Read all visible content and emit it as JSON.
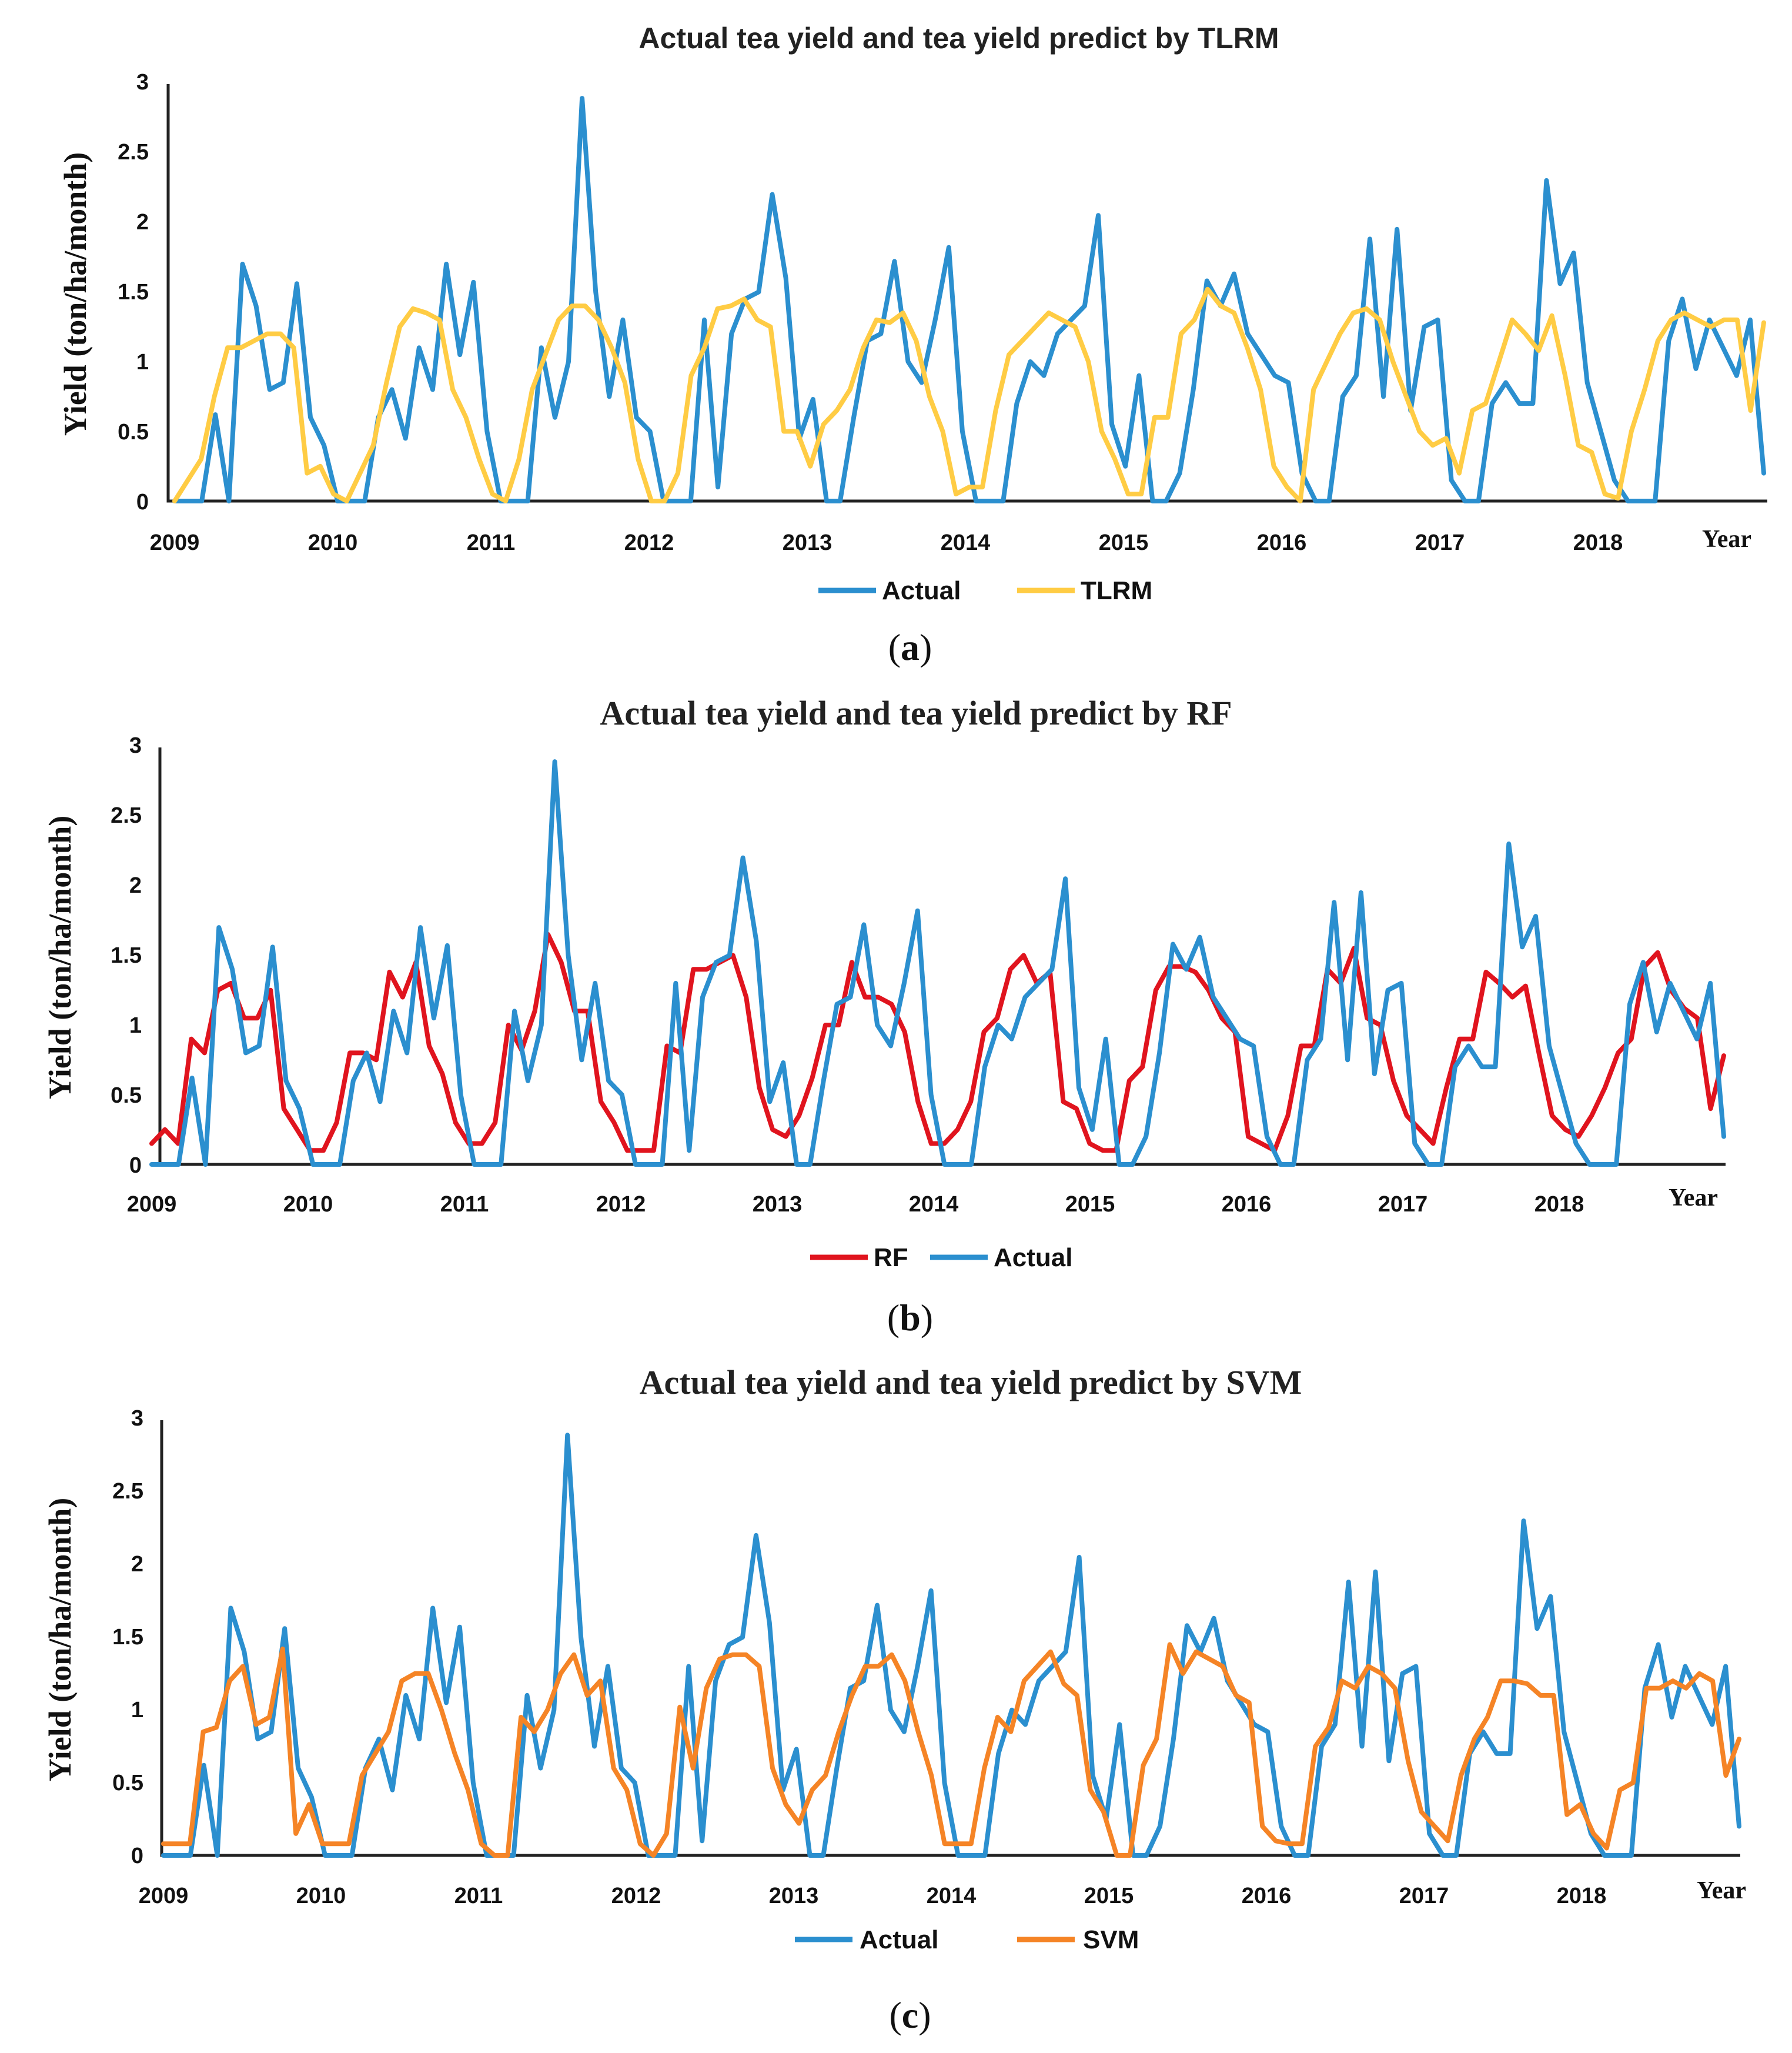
{
  "colors": {
    "actual": "#2b8fcf",
    "tlrm": "#ffcc44",
    "rf": "#e0141e",
    "svm": "#f58426"
  },
  "chart_data": [
    {
      "type": "line",
      "caption": "a",
      "title": "Actual tea yield and tea yield predict by TLRM",
      "ylabel": "Yield (ton/ha/month)",
      "xunit": "Year",
      "ylim": [
        0,
        3
      ],
      "yticks": [
        "0",
        "0.5",
        "1",
        "1.5",
        "2",
        "2.5",
        "3"
      ],
      "xticks": [
        "2009",
        "2010",
        "2011",
        "2012",
        "2013",
        "2014",
        "2015",
        "2016",
        "2017",
        "2018"
      ],
      "legend_order": [
        "Actual",
        "TLRM"
      ],
      "series": [
        {
          "name": "Actual",
          "color_key": "actual",
          "values": [
            0,
            0,
            0,
            0.62,
            0,
            1.7,
            1.4,
            0.8,
            0.85,
            1.56,
            0.6,
            0.4,
            0,
            0,
            0,
            0.6,
            0.8,
            0.45,
            1.1,
            0.8,
            1.7,
            1.05,
            1.57,
            0.5,
            0,
            0,
            0,
            1.1,
            0.6,
            1.0,
            2.89,
            1.5,
            0.75,
            1.3,
            0.6,
            0.5,
            0,
            0,
            0,
            1.3,
            0.1,
            1.2,
            1.45,
            1.5,
            2.2,
            1.6,
            0.45,
            0.73,
            0,
            0,
            0.6,
            1.15,
            1.2,
            1.72,
            1.0,
            0.85,
            1.3,
            1.82,
            0.5,
            0,
            0,
            0,
            0.7,
            1.0,
            0.9,
            1.2,
            1.3,
            1.4,
            2.05,
            0.55,
            0.25,
            0.9,
            0,
            0,
            0.2,
            0.8,
            1.58,
            1.4,
            1.63,
            1.2,
            1.05,
            0.9,
            0.85,
            0.2,
            0,
            0,
            0.75,
            0.9,
            1.88,
            0.75,
            1.95,
            0.65,
            1.25,
            1.3,
            0.15,
            0,
            0,
            0.7,
            0.85,
            0.7,
            0.7,
            2.3,
            1.56,
            1.78,
            0.85,
            0.5,
            0.15,
            0,
            0,
            0,
            1.15,
            1.45,
            0.95,
            1.3,
            1.1,
            0.9,
            1.3,
            0.2
          ]
        },
        {
          "name": "TLRM",
          "color_key": "tlrm",
          "values": [
            0,
            0.15,
            0.3,
            0.75,
            1.1,
            1.1,
            1.15,
            1.2,
            1.2,
            1.1,
            0.2,
            0.25,
            0.05,
            0,
            0.2,
            0.4,
            0.85,
            1.25,
            1.38,
            1.35,
            1.3,
            0.8,
            0.6,
            0.3,
            0.05,
            0,
            0.3,
            0.8,
            1.05,
            1.3,
            1.4,
            1.4,
            1.3,
            1.1,
            0.85,
            0.3,
            0,
            0,
            0.2,
            0.9,
            1.1,
            1.38,
            1.4,
            1.45,
            1.3,
            1.25,
            0.5,
            0.5,
            0.25,
            0.55,
            0.65,
            0.8,
            1.1,
            1.3,
            1.28,
            1.35,
            1.15,
            0.75,
            0.5,
            0.05,
            0.1,
            0.1,
            0.65,
            1.05,
            1.15,
            1.25,
            1.35,
            1.3,
            1.25,
            1.0,
            0.5,
            0.3,
            0.05,
            0.05,
            0.6,
            0.6,
            1.2,
            1.3,
            1.52,
            1.4,
            1.35,
            1.1,
            0.8,
            0.25,
            0.1,
            0,
            0.8,
            1.0,
            1.2,
            1.35,
            1.38,
            1.3,
            1.0,
            0.75,
            0.5,
            0.4,
            0.45,
            0.2,
            0.65,
            0.7,
            1.0,
            1.3,
            1.2,
            1.08,
            1.33,
            0.9,
            0.4,
            0.35,
            0.05,
            0.02,
            0.5,
            0.8,
            1.15,
            1.3,
            1.35,
            1.3,
            1.25,
            1.3,
            1.3,
            0.65,
            1.28
          ]
        }
      ]
    },
    {
      "type": "line",
      "caption": "b",
      "title": "Actual tea yield and tea yield predict by RF",
      "ylabel": "Yield (ton/ha/month)",
      "xunit": "Year",
      "ylim": [
        0,
        3
      ],
      "yticks": [
        "0",
        "0.5",
        "1",
        "1.5",
        "2",
        "2.5",
        "3"
      ],
      "xticks": [
        "2009",
        "2010",
        "2011",
        "2012",
        "2013",
        "2014",
        "2015",
        "2016",
        "2017",
        "2018"
      ],
      "legend_order": [
        "RF",
        "Actual"
      ],
      "series": [
        {
          "name": "Actual",
          "color_key": "actual",
          "values": [
            0,
            0,
            0,
            0.62,
            0,
            1.7,
            1.4,
            0.8,
            0.85,
            1.56,
            0.6,
            0.4,
            0,
            0,
            0,
            0.6,
            0.8,
            0.45,
            1.1,
            0.8,
            1.7,
            1.05,
            1.57,
            0.5,
            0,
            0,
            0,
            1.1,
            0.6,
            1.0,
            2.89,
            1.5,
            0.75,
            1.3,
            0.6,
            0.5,
            0,
            0,
            0,
            1.3,
            0.1,
            1.2,
            1.45,
            1.5,
            2.2,
            1.6,
            0.45,
            0.73,
            0,
            0,
            0.6,
            1.15,
            1.2,
            1.72,
            1.0,
            0.85,
            1.3,
            1.82,
            0.5,
            0,
            0,
            0,
            0.7,
            1.0,
            0.9,
            1.2,
            1.3,
            1.4,
            2.05,
            0.55,
            0.25,
            0.9,
            0,
            0,
            0.2,
            0.8,
            1.58,
            1.4,
            1.63,
            1.2,
            1.05,
            0.9,
            0.85,
            0.2,
            0,
            0,
            0.75,
            0.9,
            1.88,
            0.75,
            1.95,
            0.65,
            1.25,
            1.3,
            0.15,
            0,
            0,
            0.7,
            0.85,
            0.7,
            0.7,
            2.3,
            1.56,
            1.78,
            0.85,
            0.5,
            0.15,
            0,
            0,
            0,
            1.15,
            1.45,
            0.95,
            1.3,
            1.1,
            0.9,
            1.3,
            0.2
          ]
        },
        {
          "name": "RF",
          "color_key": "rf",
          "values": [
            0.15,
            0.25,
            0.15,
            0.9,
            0.8,
            1.25,
            1.3,
            1.05,
            1.05,
            1.25,
            0.4,
            0.25,
            0.1,
            0.1,
            0.3,
            0.8,
            0.8,
            0.75,
            1.38,
            1.2,
            1.45,
            0.85,
            0.65,
            0.3,
            0.15,
            0.15,
            0.3,
            1.0,
            0.82,
            1.1,
            1.65,
            1.45,
            1.1,
            1.1,
            0.45,
            0.3,
            0.1,
            0.1,
            0.1,
            0.85,
            0.8,
            1.4,
            1.4,
            1.45,
            1.5,
            1.2,
            0.55,
            0.25,
            0.2,
            0.35,
            0.62,
            1.0,
            1.0,
            1.45,
            1.2,
            1.2,
            1.15,
            0.95,
            0.45,
            0.15,
            0.15,
            0.25,
            0.45,
            0.95,
            1.05,
            1.4,
            1.5,
            1.3,
            1.38,
            0.45,
            0.4,
            0.15,
            0.1,
            0.1,
            0.6,
            0.7,
            1.25,
            1.42,
            1.42,
            1.38,
            1.25,
            1.05,
            0.95,
            0.2,
            0.15,
            0.1,
            0.35,
            0.85,
            0.85,
            1.4,
            1.3,
            1.55,
            1.05,
            1.0,
            0.6,
            0.35,
            0.25,
            0.15,
            0.55,
            0.9,
            0.9,
            1.38,
            1.3,
            1.2,
            1.28,
            0.8,
            0.35,
            0.25,
            0.2,
            0.35,
            0.55,
            0.8,
            0.9,
            1.42,
            1.52,
            1.25,
            1.12,
            1.05,
            0.4,
            0.78
          ]
        }
      ]
    },
    {
      "type": "line",
      "caption": "c",
      "title": "Actual tea yield and tea yield predict by SVM",
      "ylabel": "Yield (ton/ha/month)",
      "xunit": "Year",
      "ylim": [
        0,
        3
      ],
      "yticks": [
        "0",
        "0.5",
        "1",
        "1.5",
        "2",
        "2.5",
        "3"
      ],
      "xticks": [
        "2009",
        "2010",
        "2011",
        "2012",
        "2013",
        "2014",
        "2015",
        "2016",
        "2017",
        "2018"
      ],
      "legend_order": [
        "Actual",
        "SVM"
      ],
      "series": [
        {
          "name": "Actual",
          "color_key": "actual",
          "values": [
            0,
            0,
            0,
            0.62,
            0,
            1.7,
            1.4,
            0.8,
            0.85,
            1.56,
            0.6,
            0.4,
            0,
            0,
            0,
            0.6,
            0.8,
            0.45,
            1.1,
            0.8,
            1.7,
            1.05,
            1.57,
            0.5,
            0,
            0,
            0,
            1.1,
            0.6,
            1.0,
            2.89,
            1.5,
            0.75,
            1.3,
            0.6,
            0.5,
            0,
            0,
            0,
            1.3,
            0.1,
            1.2,
            1.45,
            1.5,
            2.2,
            1.6,
            0.45,
            0.73,
            0,
            0,
            0.6,
            1.15,
            1.2,
            1.72,
            1.0,
            0.85,
            1.3,
            1.82,
            0.5,
            0,
            0,
            0,
            0.7,
            1.0,
            0.9,
            1.2,
            1.3,
            1.4,
            2.05,
            0.55,
            0.25,
            0.9,
            0,
            0,
            0.2,
            0.8,
            1.58,
            1.4,
            1.63,
            1.2,
            1.05,
            0.9,
            0.85,
            0.2,
            0,
            0,
            0.75,
            0.9,
            1.88,
            0.75,
            1.95,
            0.65,
            1.25,
            1.3,
            0.15,
            0,
            0,
            0.7,
            0.85,
            0.7,
            0.7,
            2.3,
            1.56,
            1.78,
            0.85,
            0.5,
            0.15,
            0,
            0,
            0,
            1.15,
            1.45,
            0.95,
            1.3,
            1.1,
            0.9,
            1.3,
            0.2
          ]
        },
        {
          "name": "SVM",
          "color_key": "svm",
          "values": [
            0.08,
            0.08,
            0.08,
            0.85,
            0.88,
            1.2,
            1.3,
            0.9,
            0.95,
            1.42,
            0.15,
            0.35,
            0.08,
            0.08,
            0.08,
            0.55,
            0.7,
            0.85,
            1.2,
            1.25,
            1.25,
            1.0,
            0.7,
            0.45,
            0.08,
            0,
            0,
            0.95,
            0.85,
            1.0,
            1.25,
            1.38,
            1.1,
            1.2,
            0.6,
            0.45,
            0.08,
            0,
            0.15,
            1.02,
            0.6,
            1.15,
            1.35,
            1.38,
            1.38,
            1.3,
            0.6,
            0.35,
            0.22,
            0.45,
            0.55,
            0.85,
            1.1,
            1.3,
            1.3,
            1.38,
            1.2,
            0.85,
            0.55,
            0.08,
            0.08,
            0.08,
            0.6,
            0.95,
            0.85,
            1.2,
            1.3,
            1.4,
            1.18,
            1.1,
            0.45,
            0.3,
            0,
            0,
            0.62,
            0.8,
            1.45,
            1.25,
            1.4,
            1.35,
            1.3,
            1.1,
            1.05,
            0.2,
            0.1,
            0.08,
            0.08,
            0.75,
            0.88,
            1.2,
            1.15,
            1.3,
            1.25,
            1.15,
            0.65,
            0.3,
            0.2,
            0.1,
            0.55,
            0.8,
            0.95,
            1.2,
            1.2,
            1.18,
            1.1,
            1.1,
            0.28,
            0.35,
            0.15,
            0.05,
            0.45,
            0.5,
            1.15,
            1.15,
            1.2,
            1.15,
            1.25,
            1.2,
            0.55,
            0.8
          ]
        }
      ]
    }
  ]
}
